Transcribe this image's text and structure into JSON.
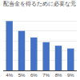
{
  "chart_data": {
    "type": "bar",
    "title": "配当金を得るために必要な元",
    "categories": [
      "4%",
      "5%",
      "6%",
      "7%",
      "8%",
      "9%"
    ],
    "values": [
      250,
      200,
      167,
      143,
      125,
      111
    ],
    "color": "#4472c4",
    "ylim": [
      0,
      300
    ],
    "yticks": [
      0,
      50,
      100,
      150,
      200,
      250,
      300
    ],
    "grid": true,
    "tick_labels": "x"
  }
}
